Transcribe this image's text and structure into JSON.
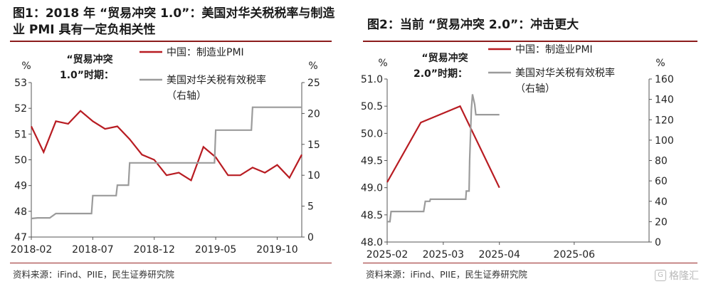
{
  "charts": [
    {
      "title": "图1：2018 年 “贸易冲突 1.0”：美国对华关税税率与制造业 PMI 具有一定负相关性",
      "source": "资料来源：iFind、PIIE，民生证券研究院",
      "annotation": [
        "“贸易冲突",
        "1.0”时期："
      ],
      "left_unit": "%",
      "right_unit": "%",
      "legend": [
        "中国：制造业PMI",
        "美国对华关税有效税率",
        "（右轴）"
      ]
    },
    {
      "title": "图2：当前 “贸易冲突 2.0”：冲击更大",
      "source": "资料来源：iFind、PIIE，民生证券研究院",
      "annotation": [
        "“贸易冲突",
        "2.0”时期："
      ],
      "left_unit": "%",
      "right_unit": "%",
      "legend": [
        "中国：制造业PMI",
        "美国对华关税有效税率",
        "（右轴）"
      ]
    }
  ],
  "colors": {
    "pmi": "#b81c22",
    "tariff": "#9b9b9b",
    "accent": "#8c1c1c"
  },
  "watermark": {
    "text": "格隆汇",
    "icon": "gelonghui-logo-icon"
  },
  "chart_data": [
    {
      "type": "line",
      "x_ticks": [
        "2018-02",
        "2018-07",
        "2018-12",
        "2019-05",
        "2019-10"
      ],
      "x_range": [
        0,
        22
      ],
      "x_tick_positions": [
        0,
        5,
        10,
        15,
        20
      ],
      "y_left": {
        "min": 47,
        "max": 53,
        "ticks": [
          47,
          48,
          49,
          50,
          51,
          52,
          53
        ]
      },
      "y_right": {
        "min": 0,
        "max": 25,
        "ticks": [
          0,
          5,
          10,
          15,
          20,
          25
        ]
      },
      "series": [
        {
          "name": "中国：制造业PMI",
          "axis": "left",
          "x": [
            0,
            1,
            2,
            3,
            4,
            5,
            6,
            7,
            8,
            9,
            10,
            11,
            12,
            13,
            14,
            15,
            16,
            17,
            18,
            19,
            20,
            21,
            22
          ],
          "y": [
            51.3,
            50.3,
            51.5,
            51.4,
            51.9,
            51.5,
            51.2,
            51.3,
            50.8,
            50.2,
            50.0,
            49.4,
            49.5,
            49.2,
            50.5,
            50.1,
            49.4,
            49.4,
            49.7,
            49.5,
            49.8,
            49.3,
            50.2
          ]
        },
        {
          "name": "美国对华关税有效税率",
          "axis": "right",
          "x": [
            0,
            0.5,
            1,
            1.5,
            2,
            3,
            4,
            4.9,
            5,
            6,
            6.9,
            7,
            7.9,
            8,
            9,
            10,
            11,
            12,
            13,
            14,
            14.9,
            15,
            16,
            17,
            17.9,
            18,
            19,
            20,
            21,
            22
          ],
          "y": [
            3,
            3.1,
            3.1,
            3.1,
            3.8,
            3.8,
            3.8,
            3.8,
            6.7,
            6.7,
            6.7,
            8.4,
            8.4,
            12,
            12,
            12,
            12,
            12,
            12,
            12,
            12,
            17.3,
            17.3,
            17.3,
            17.3,
            21,
            21,
            21,
            21,
            21
          ]
        }
      ]
    },
    {
      "type": "line",
      "x_ticks": [
        "2025-02",
        "2025-03",
        "2025-04",
        "2025-06"
      ],
      "x_range": [
        0,
        4.667
      ],
      "x_tick_positions": [
        0,
        1,
        2,
        3.333
      ],
      "y_left": {
        "min": 48.0,
        "max": 51.0,
        "ticks": [
          48.0,
          48.5,
          49.0,
          49.5,
          50.0,
          50.5,
          51.0
        ]
      },
      "y_right": {
        "min": 0,
        "max": 160,
        "ticks": [
          0,
          20,
          40,
          60,
          80,
          100,
          120,
          140,
          160
        ]
      },
      "series": [
        {
          "name": "中国：制造业PMI",
          "axis": "left",
          "x": [
            0,
            0.6,
            1.3,
            2.0
          ],
          "y": [
            49.1,
            50.2,
            50.5,
            49.0
          ]
        },
        {
          "name": "美国对华关税有效税率",
          "axis": "right",
          "x": [
            0,
            0.05,
            0.07,
            0.1,
            0.65,
            0.68,
            0.7,
            0.76,
            0.77,
            1.4,
            1.41,
            1.46,
            1.47,
            1.5,
            1.52,
            1.56,
            1.58,
            1.6,
            2.0
          ],
          "y": [
            20,
            20,
            30,
            30,
            30,
            40,
            40,
            40,
            42,
            42,
            50,
            50,
            80,
            130,
            145,
            135,
            125,
            125,
            125
          ]
        }
      ]
    }
  ]
}
